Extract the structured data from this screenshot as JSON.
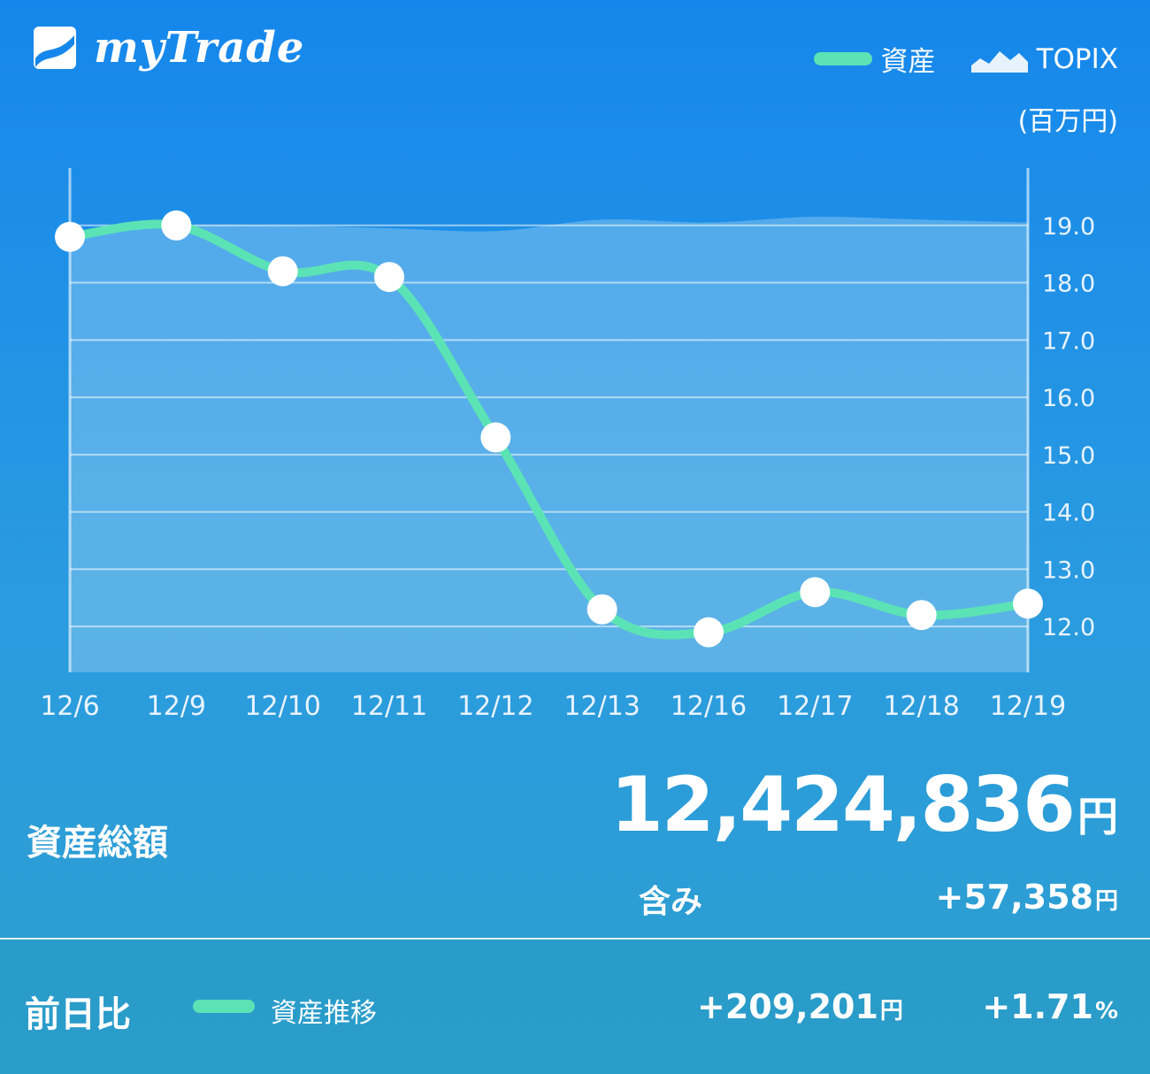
{
  "app": {
    "name": "myTrade"
  },
  "legend": {
    "asset_label": "資産",
    "index_label": "TOPIX"
  },
  "unit_label": "(百万円)",
  "colors": {
    "asset_line": "#5be3b5",
    "background_top": "#1587ec",
    "background_bottom": "#2d9fce"
  },
  "chart_data": {
    "type": "line",
    "categories": [
      "12/6",
      "12/9",
      "12/10",
      "12/11",
      "12/12",
      "12/13",
      "12/16",
      "12/17",
      "12/18",
      "12/19"
    ],
    "series": [
      {
        "name": "資産",
        "values": [
          18.8,
          19.0,
          18.2,
          18.1,
          15.3,
          12.3,
          11.9,
          12.6,
          12.2,
          12.4
        ]
      },
      {
        "name": "TOPIX",
        "values": [
          18.9,
          19.0,
          19.0,
          18.95,
          18.9,
          19.1,
          19.05,
          19.15,
          19.1,
          19.05
        ]
      }
    ],
    "y_ticks": [
      "19.0",
      "18.0",
      "17.0",
      "16.0",
      "15.0",
      "14.0",
      "13.0",
      "12.0"
    ],
    "ylim": [
      11.2,
      20.0
    ],
    "y_axis_position": "right",
    "grid": true
  },
  "summary": {
    "total_label": "資産総額",
    "total_value": "12,424,836",
    "total_unit": "円",
    "included_label": "含み",
    "included_value": "+57,358",
    "included_unit": "円"
  },
  "footer": {
    "prev_day_label": "前日比",
    "trend_label": "資産推移",
    "prev_day_amount": "+209,201",
    "prev_day_amount_unit": "円",
    "prev_day_percent": "+1.71",
    "prev_day_percent_unit": "%"
  }
}
